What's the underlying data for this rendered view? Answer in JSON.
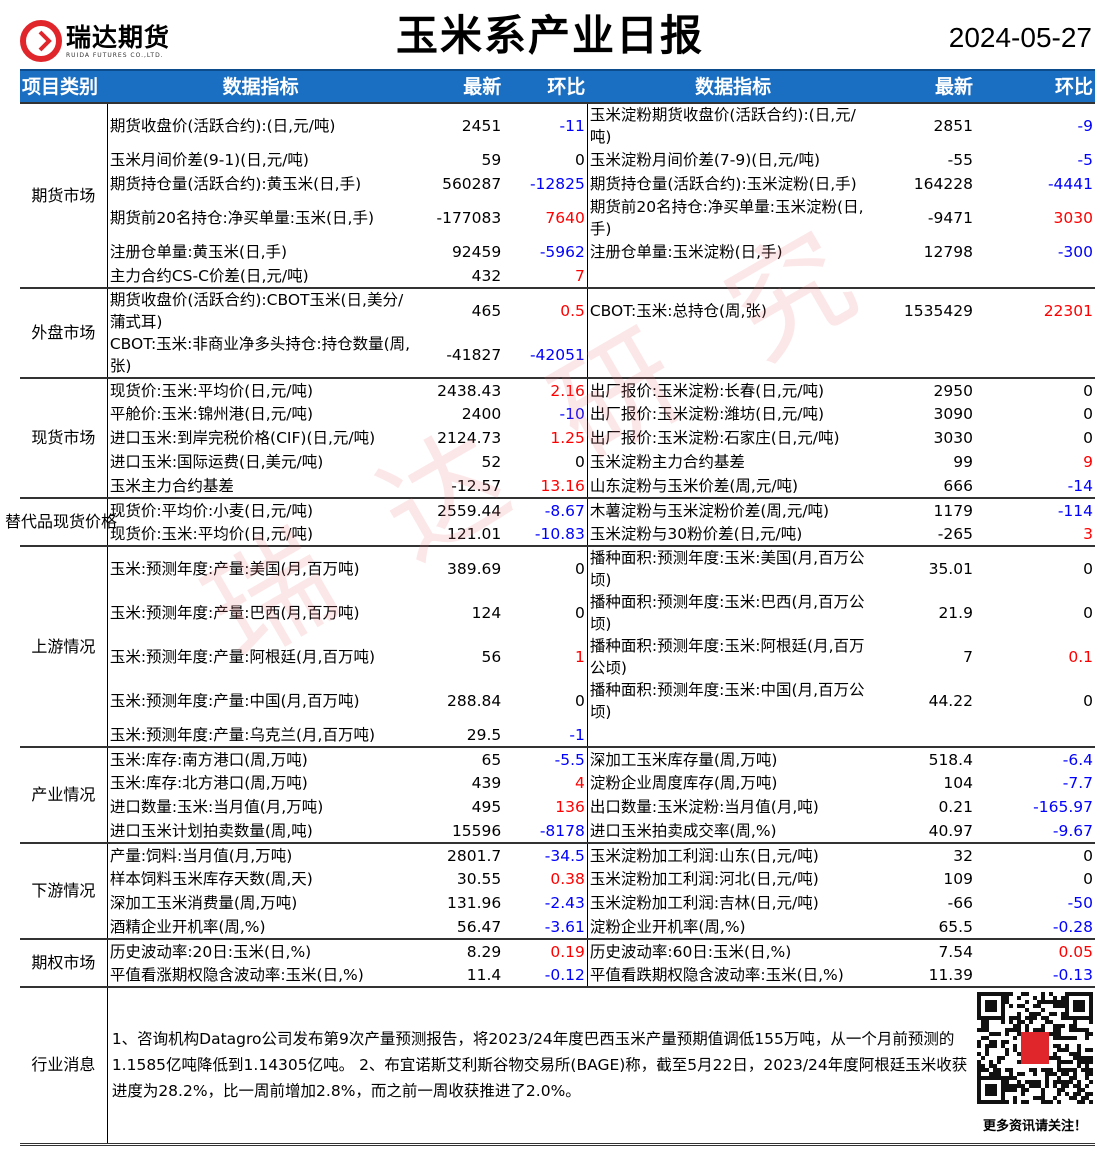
{
  "header": {
    "logo_cn": "瑞达期货",
    "logo_en": "RUIDA FUTURES CO.,LTD.",
    "title": "玉米系产业日报",
    "date": "2024-05-27"
  },
  "colors": {
    "header_bg": "#1b6fc2",
    "positive": "#ff0000",
    "negative": "#0000ff",
    "brand": "#e0262b"
  },
  "columns": {
    "category": "项目类别",
    "indicator": "数据指标",
    "latest": "最新",
    "change": "环比"
  },
  "watermark": "瑞达研究",
  "groups": [
    {
      "category": "期货市场",
      "rows": [
        [
          "期货收盘价(活跃合约):(日,元/吨)",
          "2451",
          "-11",
          "玉米淀粉期货收盘价(活跃合约):(日,元/吨)",
          "2851",
          "-9"
        ],
        [
          "玉米月间价差(9-1)(日,元/吨)",
          "59",
          "0",
          "玉米淀粉月间价差(7-9)(日,元/吨)",
          "-55",
          "-5"
        ],
        [
          "期货持仓量(活跃合约):黄玉米(日,手)",
          "560287",
          "-12825",
          "期货持仓量(活跃合约):玉米淀粉(日,手)",
          "164228",
          "-4441"
        ],
        [
          "期货前20名持仓:净买单量:玉米(日,手)",
          "-177083",
          "7640",
          "期货前20名持仓:净买单量:玉米淀粉(日,手)",
          "-9471",
          "3030"
        ],
        [
          "注册仓单量:黄玉米(日,手)",
          "92459",
          "-5962",
          "注册仓单量:玉米淀粉(日,手)",
          "12798",
          "-300"
        ],
        [
          "主力合约CS-C价差(日,元/吨)",
          "432",
          "7",
          "",
          "",
          ""
        ]
      ]
    },
    {
      "category": "外盘市场",
      "rows": [
        [
          "期货收盘价(活跃合约):CBOT玉米(日,美分/蒲式耳)",
          "465",
          "0.5",
          "CBOT:玉米:总持仓(周,张)",
          "1535429",
          "22301"
        ],
        [
          "CBOT:玉米:非商业净多头持仓:持仓数量(周,张)",
          "-41827",
          "-42051",
          "",
          "",
          ""
        ]
      ]
    },
    {
      "category": "现货市场",
      "rows": [
        [
          "现货价:玉米:平均价(日,元/吨)",
          "2438.43",
          "2.16",
          "出厂报价:玉米淀粉:长春(日,元/吨)",
          "2950",
          "0"
        ],
        [
          "平舱价:玉米:锦州港(日,元/吨)",
          "2400",
          "-10",
          "出厂报价:玉米淀粉:潍坊(日,元/吨)",
          "3090",
          "0"
        ],
        [
          "进口玉米:到岸完税价格(CIF)(日,元/吨)",
          "2124.73",
          "1.25",
          "出厂报价:玉米淀粉:石家庄(日,元/吨)",
          "3030",
          "0"
        ],
        [
          "进口玉米:国际运费(日,美元/吨)",
          "52",
          "0",
          "玉米淀粉主力合约基差",
          "99",
          "9"
        ],
        [
          "玉米主力合约基差",
          "-12.57",
          "13.16",
          "山东淀粉与玉米价差(周,元/吨)",
          "666",
          "-14"
        ]
      ]
    },
    {
      "category": "替代品现货价格",
      "rows": [
        [
          "现货价:平均价:小麦(日,元/吨)",
          "2559.44",
          "-8.67",
          "木薯淀粉与玉米淀粉价差(周,元/吨)",
          "1179",
          "-114"
        ],
        [
          "现货价:玉米:平均价(日,元/吨)",
          "121.01",
          "-10.83",
          "玉米淀粉与30粉价差(日,元/吨)",
          "-265",
          "3"
        ]
      ]
    },
    {
      "category": "上游情况",
      "rows": [
        [
          "玉米:预测年度:产量:美国(月,百万吨)",
          "389.69",
          "0",
          "播种面积:预测年度:玉米:美国(月,百万公顷)",
          "35.01",
          "0"
        ],
        [
          "玉米:预测年度:产量:巴西(月,百万吨)",
          "124",
          "0",
          "播种面积:预测年度:玉米:巴西(月,百万公顷)",
          "21.9",
          "0"
        ],
        [
          "玉米:预测年度:产量:阿根廷(月,百万吨)",
          "56",
          "1",
          "播种面积:预测年度:玉米:阿根廷(月,百万公顷)",
          "7",
          "0.1"
        ],
        [
          "玉米:预测年度:产量:中国(月,百万吨)",
          "288.84",
          "0",
          "播种面积:预测年度:玉米:中国(月,百万公顷)",
          "44.22",
          "0"
        ],
        [
          "玉米:预测年度:产量:乌克兰(月,百万吨)",
          "29.5",
          "-1",
          "",
          "",
          ""
        ]
      ]
    },
    {
      "category": "产业情况",
      "rows": [
        [
          "玉米:库存:南方港口(周,万吨)",
          "65",
          "-5.5",
          "深加工玉米库存量(周,万吨)",
          "518.4",
          "-6.4"
        ],
        [
          "玉米:库存:北方港口(周,万吨)",
          "439",
          "4",
          "淀粉企业周度库存(周,万吨)",
          "104",
          "-7.7"
        ],
        [
          "进口数量:玉米:当月值(月,万吨)",
          "495",
          "136",
          "出口数量:玉米淀粉:当月值(月,吨)",
          "0.21",
          "-165.97"
        ],
        [
          "进口玉米计划拍卖数量(周,吨)",
          "15596",
          "-8178",
          "进口玉米拍卖成交率(周,%)",
          "40.97",
          "-9.67"
        ]
      ]
    },
    {
      "category": "下游情况",
      "rows": [
        [
          "产量:饲料:当月值(月,万吨)",
          "2801.7",
          "-34.5",
          "玉米淀粉加工利润:山东(日,元/吨)",
          "32",
          "0"
        ],
        [
          "样本饲料玉米库存天数(周,天)",
          "30.55",
          "0.38",
          "玉米淀粉加工利润:河北(日,元/吨)",
          "109",
          "0"
        ],
        [
          "深加工玉米消费量(周,万吨)",
          "131.96",
          "-2.43",
          "玉米淀粉加工利润:吉林(日,元/吨)",
          "-66",
          "-50"
        ],
        [
          "酒精企业开机率(周,%)",
          "56.47",
          "-3.61",
          "淀粉企业开机率(周,%)",
          "65.5",
          "-0.28"
        ]
      ]
    },
    {
      "category": "期权市场",
      "rows": [
        [
          "历史波动率:20日:玉米(日,%)",
          "8.29",
          "0.19",
          "历史波动率:60日:玉米(日,%)",
          "7.54",
          "0.05"
        ],
        [
          "平值看涨期权隐含波动率:玉米(日,%)",
          "11.4",
          "-0.12",
          "平值看跌期权隐含波动率:玉米(日,%)",
          "11.39",
          "-0.13"
        ]
      ]
    }
  ],
  "news": {
    "category": "行业消息",
    "text": "1、咨询机构Datagro公司发布第9次产量预测报告，将2023/24年度巴西玉米产量预期值调低155万吨，从一个月前预测的1.1585亿吨降低到1.14305亿吨。 2、布宜诺斯艾利斯谷物交易所(BAGE)称，截至5月22日，2023/24年度阿根廷玉米收获进度为28.2%，比一周前增加2.8%，而之前一周收获推进了2.0%。",
    "qr_caption": "更多资讯请关注！"
  }
}
